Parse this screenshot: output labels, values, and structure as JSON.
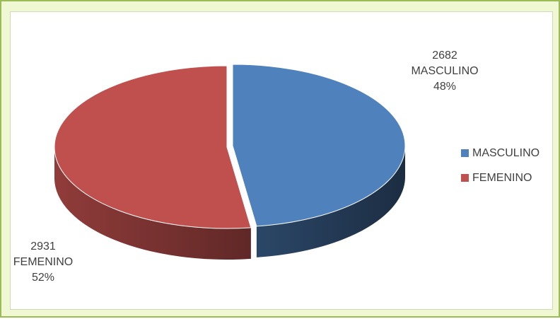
{
  "chart_data": {
    "type": "pie",
    "style": "3d",
    "title": "",
    "slices": [
      {
        "name": "MASCULINO",
        "value": 2682,
        "percent": "48%",
        "color": "#4f81bd"
      },
      {
        "name": "FEMENINO",
        "value": 2931,
        "percent": "52%",
        "color": "#c0504d"
      }
    ],
    "legend_position": "right"
  }
}
